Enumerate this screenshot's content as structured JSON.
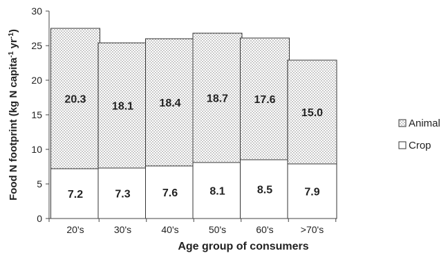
{
  "chart_data": {
    "type": "bar",
    "stacked": true,
    "title": "",
    "xlabel": "Age group of consumers",
    "ylabel": "Food N footprint (kg N capita",
    "ylabel_sup1": "-1",
    "ylabel_mid": " yr",
    "ylabel_sup2": "-1",
    "ylabel_end": ")",
    "ylim": [
      0,
      30
    ],
    "yticks": [
      "0",
      "5",
      "10",
      "15",
      "20",
      "25",
      "30"
    ],
    "grid": false,
    "legend_position": "right",
    "categories": [
      "20's",
      "30's",
      "40's",
      "50's",
      "60's",
      ">70's"
    ],
    "series": [
      {
        "name": "Crop",
        "values": [
          7.2,
          7.3,
          7.6,
          8.1,
          8.5,
          7.9
        ],
        "labels": [
          "7.2",
          "7.3",
          "7.6",
          "8.1",
          "8.5",
          "7.9"
        ],
        "pattern": "blank"
      },
      {
        "name": "Animal",
        "values": [
          20.3,
          18.1,
          18.4,
          18.7,
          17.6,
          15.0
        ],
        "labels": [
          "20.3",
          "18.1",
          "18.4",
          "18.7",
          "17.6",
          "15.0"
        ],
        "pattern": "dotted"
      }
    ],
    "legend": [
      "Animal",
      "Crop"
    ]
  }
}
